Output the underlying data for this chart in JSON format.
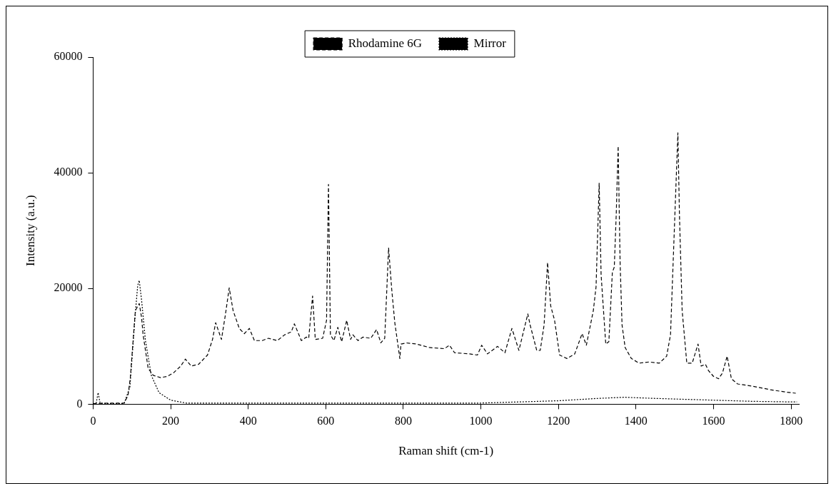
{
  "chart_data": {
    "type": "line",
    "xlabel": "Raman shift (cm-1)",
    "ylabel": "Intensity (a.u.)",
    "xlim": [
      0,
      1820
    ],
    "xticks": [
      0,
      200,
      400,
      600,
      800,
      1000,
      1200,
      1400,
      1600,
      1800
    ],
    "ylim": [
      0,
      60000
    ],
    "yticks": [
      0,
      20000,
      40000,
      60000
    ],
    "grid": false,
    "legend": "top",
    "marker": "none",
    "series": [
      {
        "name": "Rhodamine 6G",
        "color": "#000000",
        "line_style": "dashed",
        "x": [
          0,
          40,
          80,
          90,
          96,
          109,
          119,
          125,
          129,
          142,
          155,
          174,
          191,
          207,
          226,
          238,
          253,
          272,
          295,
          308,
          316,
          331,
          341,
          351,
          361,
          377,
          390,
          403,
          416,
          436,
          452,
          475,
          494,
          511,
          519,
          537,
          550,
          556,
          566,
          573,
          592,
          602,
          607,
          612,
          621,
          631,
          641,
          654,
          664,
          670,
          683,
          696,
          716,
          731,
          742,
          752,
          762,
          770,
          778,
          791,
          794,
          808,
          834,
          867,
          906,
          919,
          932,
          971,
          991,
          1002,
          1017,
          1043,
          1062,
          1080,
          1098,
          1121,
          1127,
          1144,
          1153,
          1163,
          1172,
          1180,
          1190,
          1203,
          1222,
          1242,
          1261,
          1272,
          1290,
          1297,
          1305,
          1310,
          1322,
          1330,
          1339,
          1344,
          1349,
          1354,
          1359,
          1364,
          1372,
          1388,
          1408,
          1434,
          1460,
          1479,
          1489,
          1498,
          1508,
          1512,
          1519,
          1531,
          1545,
          1554,
          1560,
          1568,
          1579,
          1587,
          1600,
          1613,
          1623,
          1635,
          1646,
          1662,
          1702,
          1747,
          1786,
          1812
        ],
        "values": [
          100,
          200,
          200,
          1500,
          4600,
          16200,
          17400,
          15000,
          12000,
          6200,
          5000,
          4600,
          4800,
          5400,
          6600,
          7800,
          6600,
          6900,
          8500,
          11200,
          14100,
          11200,
          15400,
          20100,
          16200,
          13100,
          12200,
          13100,
          11000,
          11000,
          11400,
          11000,
          12000,
          12500,
          13900,
          11000,
          11600,
          11400,
          18700,
          11200,
          11400,
          14500,
          38000,
          12000,
          11000,
          13300,
          10800,
          14500,
          11200,
          12000,
          11000,
          11600,
          11400,
          12900,
          10600,
          11400,
          27000,
          19900,
          14100,
          7900,
          10400,
          10600,
          10400,
          9800,
          9600,
          10200,
          8900,
          8700,
          8500,
          10200,
          8700,
          10000,
          8900,
          13100,
          9300,
          15600,
          13700,
          9300,
          9300,
          13700,
          24500,
          17000,
          14500,
          8500,
          7900,
          8700,
          12200,
          10200,
          16200,
          20300,
          38200,
          22400,
          10400,
          10800,
          22800,
          23700,
          32800,
          44600,
          24500,
          13700,
          9800,
          7900,
          7100,
          7300,
          7100,
          8300,
          12000,
          28600,
          46900,
          32800,
          16200,
          7100,
          7100,
          9100,
          10400,
          6600,
          6900,
          5800,
          4800,
          4400,
          5400,
          8300,
          4400,
          3500,
          3100,
          2500,
          2100,
          1900
        ]
      },
      {
        "name": "Mirror",
        "color": "#000000",
        "line_style": "dotted",
        "x": [
          0,
          8,
          13,
          18,
          40,
          80,
          95,
          108,
          115,
          119,
          125,
          135,
          150,
          170,
          200,
          240,
          300,
          500,
          800,
          1000,
          1100,
          1200,
          1300,
          1370,
          1450,
          1550,
          1700,
          1800,
          1815
        ],
        "values": [
          100,
          200,
          2000,
          200,
          100,
          100,
          3000,
          15000,
          20500,
          21400,
          18000,
          11000,
          5000,
          2000,
          700,
          200,
          200,
          200,
          200,
          200,
          400,
          600,
          1000,
          1200,
          1000,
          800,
          500,
          400,
          400
        ]
      }
    ]
  }
}
